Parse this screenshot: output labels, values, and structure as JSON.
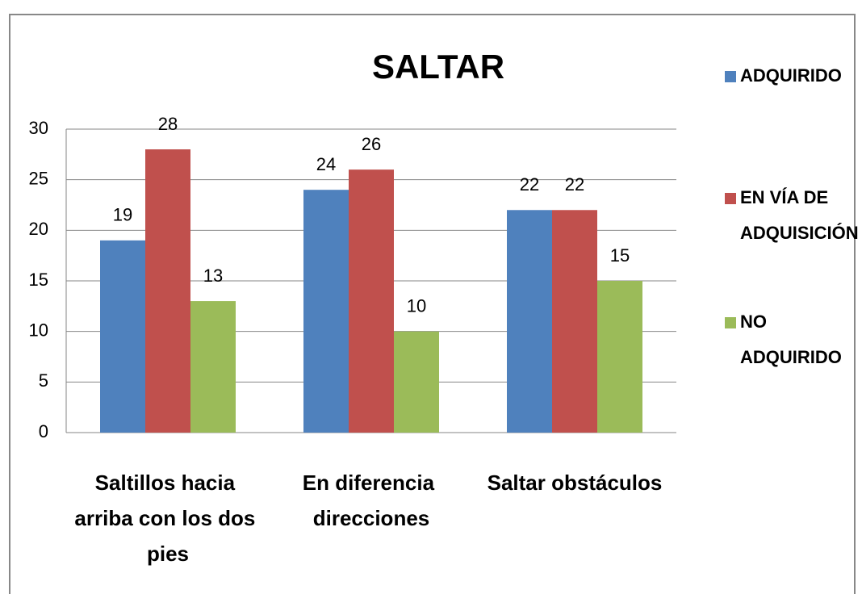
{
  "chart_data": {
    "type": "bar",
    "title": "SALTAR",
    "categories": [
      "Saltillos hacia arriba con los dos pies",
      "En diferencia direcciones",
      "Saltar obstáculos"
    ],
    "series": [
      {
        "name": "ADQUIRIDO",
        "color": "#4f81bd",
        "values": [
          19,
          24,
          22
        ]
      },
      {
        "name": "EN VÍA DE ADQUISICIÓN",
        "color": "#c0504d",
        "values": [
          28,
          26,
          22
        ]
      },
      {
        "name": "NO ADQUIRIDO",
        "color": "#9bbb59",
        "values": [
          13,
          10,
          15
        ]
      }
    ],
    "ylim": [
      0,
      30
    ],
    "yticks": [
      0,
      5,
      10,
      15,
      20,
      25,
      30
    ],
    "grid": true,
    "legend": "right"
  }
}
